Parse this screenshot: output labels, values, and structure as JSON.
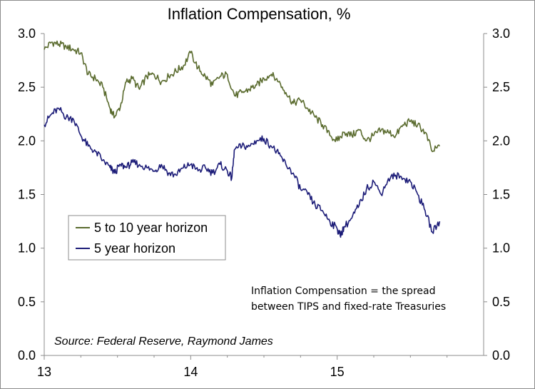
{
  "chart_data": {
    "type": "line",
    "title": "Inflation Compensation, %",
    "x_tick_labels": [
      "13",
      "14",
      "15"
    ],
    "x_range": [
      2013.0,
      2016.0
    ],
    "ylim": [
      0.0,
      3.0
    ],
    "y_ticks": [
      "0.0",
      "0.5",
      "1.0",
      "1.5",
      "2.0",
      "2.5",
      "3.0"
    ],
    "legend": {
      "placement": "left-middle"
    },
    "annotation": [
      "Inflation Compensation = the spread",
      "between TIPS and fixed-rate Treasuries"
    ],
    "source": "Source: Federal Reserve, Raymond James",
    "series": [
      {
        "name": "5 to 10 year horizon",
        "color": "#5a6b2e",
        "x": [
          2013.0,
          2013.05,
          2013.1,
          2013.15,
          2013.2,
          2013.25,
          2013.3,
          2013.35,
          2013.4,
          2013.45,
          2013.48,
          2013.52,
          2013.56,
          2013.6,
          2013.65,
          2013.7,
          2013.75,
          2013.8,
          2013.85,
          2013.9,
          2013.95,
          2014.0,
          2014.05,
          2014.1,
          2014.15,
          2014.2,
          2014.25,
          2014.3,
          2014.35,
          2014.4,
          2014.45,
          2014.5,
          2014.55,
          2014.6,
          2014.65,
          2014.7,
          2014.75,
          2014.8,
          2014.85,
          2014.9,
          2014.95,
          2015.0,
          2015.05,
          2015.1,
          2015.15,
          2015.2,
          2015.25,
          2015.3,
          2015.35,
          2015.4,
          2015.45,
          2015.5,
          2015.55,
          2015.6,
          2015.65,
          2015.7
        ],
        "y": [
          2.85,
          2.92,
          2.9,
          2.88,
          2.85,
          2.82,
          2.62,
          2.58,
          2.5,
          2.3,
          2.22,
          2.32,
          2.55,
          2.58,
          2.48,
          2.6,
          2.62,
          2.55,
          2.6,
          2.65,
          2.7,
          2.82,
          2.68,
          2.6,
          2.52,
          2.6,
          2.62,
          2.42,
          2.45,
          2.48,
          2.52,
          2.58,
          2.62,
          2.55,
          2.45,
          2.35,
          2.38,
          2.3,
          2.22,
          2.15,
          2.05,
          2.0,
          2.08,
          2.05,
          2.1,
          2.0,
          2.05,
          2.1,
          2.08,
          2.05,
          2.15,
          2.18,
          2.15,
          2.08,
          1.9,
          1.95
        ]
      },
      {
        "name": "5 year horizon",
        "color": "#1c1c78",
        "x": [
          2013.0,
          2013.05,
          2013.1,
          2013.15,
          2013.2,
          2013.25,
          2013.3,
          2013.35,
          2013.4,
          2013.45,
          2013.48,
          2013.52,
          2013.56,
          2013.6,
          2013.65,
          2013.7,
          2013.75,
          2013.8,
          2013.85,
          2013.9,
          2013.95,
          2014.0,
          2014.05,
          2014.1,
          2014.15,
          2014.2,
          2014.25,
          2014.28,
          2014.3,
          2014.35,
          2014.4,
          2014.45,
          2014.5,
          2014.55,
          2014.6,
          2014.65,
          2014.7,
          2014.75,
          2014.8,
          2014.85,
          2014.9,
          2014.95,
          2015.0,
          2015.02,
          2015.05,
          2015.1,
          2015.15,
          2015.2,
          2015.25,
          2015.3,
          2015.35,
          2015.4,
          2015.45,
          2015.5,
          2015.55,
          2015.6,
          2015.65,
          2015.7
        ],
        "y": [
          2.15,
          2.25,
          2.3,
          2.22,
          2.2,
          2.05,
          1.95,
          1.9,
          1.82,
          1.75,
          1.7,
          1.78,
          1.75,
          1.8,
          1.78,
          1.75,
          1.72,
          1.78,
          1.7,
          1.68,
          1.75,
          1.78,
          1.72,
          1.75,
          1.7,
          1.78,
          1.72,
          1.65,
          1.92,
          1.95,
          1.95,
          2.0,
          2.02,
          1.95,
          1.88,
          1.78,
          1.7,
          1.55,
          1.5,
          1.4,
          1.35,
          1.25,
          1.18,
          1.12,
          1.2,
          1.28,
          1.4,
          1.55,
          1.62,
          1.5,
          1.65,
          1.68,
          1.65,
          1.62,
          1.5,
          1.35,
          1.15,
          1.25
        ]
      }
    ]
  }
}
